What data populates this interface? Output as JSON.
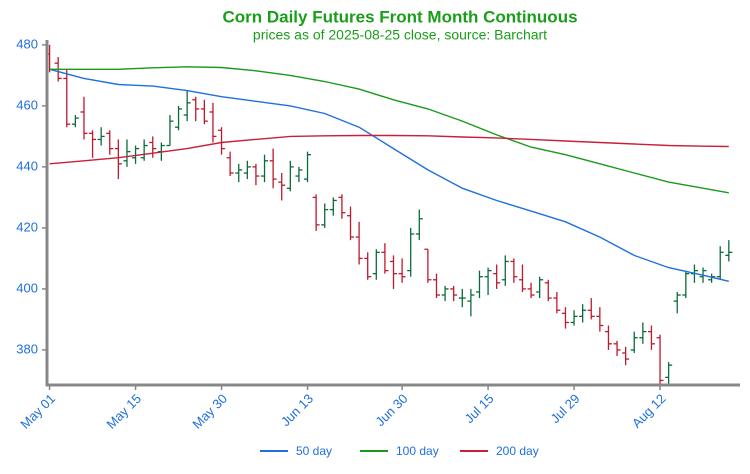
{
  "chart_data": {
    "type": "ohlc",
    "title": "Corn Daily Futures Front Month Continuous",
    "subtitle": "prices as of 2025-08-25 close, source: Barchart",
    "categories": [
      "May 01",
      null,
      null,
      null,
      null,
      null,
      null,
      null,
      null,
      null,
      "May 15",
      null,
      null,
      null,
      null,
      null,
      null,
      null,
      null,
      null,
      "May 30",
      null,
      null,
      null,
      null,
      null,
      null,
      null,
      null,
      null,
      "Jun 13",
      null,
      null,
      null,
      null,
      null,
      null,
      null,
      null,
      null,
      null,
      "Jun 30",
      null,
      null,
      null,
      null,
      null,
      null,
      null,
      null,
      null,
      "Jul 15",
      null,
      null,
      null,
      null,
      null,
      null,
      null,
      null,
      null,
      "Jul 29",
      null,
      null,
      null,
      null,
      null,
      null,
      null,
      null,
      null,
      "Aug 12",
      null,
      null,
      null,
      null,
      null,
      null,
      null,
      null
    ],
    "open": [
      477,
      474,
      469,
      454,
      458,
      451,
      449,
      451,
      446,
      442,
      443,
      443,
      448,
      445,
      447,
      453,
      457,
      462,
      459,
      458,
      452,
      443,
      438,
      438,
      440,
      437,
      442,
      435,
      433,
      437,
      436,
      430,
      421,
      426,
      430,
      424,
      417,
      410,
      405,
      412,
      409,
      405,
      406,
      418,
      413,
      403,
      398,
      400,
      397,
      396,
      399,
      404,
      405,
      403,
      409,
      403,
      400,
      399,
      402,
      397,
      392,
      389,
      391,
      393,
      391,
      386,
      382,
      379,
      380,
      384,
      386,
      384,
      371,
      396,
      398,
      405,
      404,
      403,
      404,
      411
    ],
    "high": [
      480,
      476,
      472,
      457,
      463,
      452,
      453,
      452,
      449,
      449,
      447,
      449,
      450,
      448,
      457,
      460,
      465,
      463,
      462,
      461,
      453,
      445,
      441,
      442,
      441,
      444,
      446,
      438,
      442,
      440,
      445,
      431,
      428,
      430,
      431,
      427,
      422,
      412,
      413,
      415,
      411,
      410,
      420,
      426,
      413,
      405,
      401,
      401,
      400,
      400,
      406,
      407,
      408,
      411,
      410,
      408,
      402,
      404,
      403,
      399,
      394,
      393,
      395,
      397,
      394,
      388,
      383,
      381,
      386,
      389,
      388,
      385,
      376,
      399,
      406,
      408,
      407,
      405,
      414,
      416
    ],
    "low": [
      471,
      468,
      453,
      453,
      449,
      443,
      447,
      444,
      436,
      440,
      441,
      442,
      443,
      442,
      447,
      452,
      455,
      455,
      454,
      448,
      444,
      437,
      435,
      436,
      434,
      435,
      433,
      429,
      432,
      435,
      435,
      419,
      420,
      424,
      423,
      416,
      408,
      403,
      403,
      405,
      400,
      402,
      404,
      416,
      402,
      397,
      396,
      396,
      394,
      391,
      397,
      398,
      400,
      401,
      402,
      399,
      397,
      397,
      396,
      392,
      387,
      388,
      389,
      390,
      386,
      380,
      378,
      375,
      379,
      382,
      380,
      369,
      369,
      392,
      397,
      402,
      402,
      402,
      403,
      409
    ],
    "close": [
      472,
      469,
      454,
      456,
      451,
      449,
      450,
      446,
      441,
      445,
      446,
      447,
      446,
      447,
      455,
      459,
      461,
      459,
      455,
      450,
      446,
      438,
      439,
      440,
      437,
      442,
      436,
      434,
      440,
      439,
      444,
      421,
      426,
      429,
      425,
      417,
      410,
      404,
      412,
      406,
      405,
      404,
      418,
      423,
      403,
      398,
      400,
      398,
      397,
      398,
      404,
      406,
      402,
      409,
      404,
      400,
      398,
      403,
      397,
      393,
      389,
      391,
      393,
      391,
      388,
      382,
      380,
      377,
      384,
      386,
      382,
      370,
      375,
      398,
      405,
      406,
      406,
      404,
      412,
      412
    ],
    "up_color": "#0b6b3a",
    "down_color": "#c0182e",
    "series": [
      {
        "name": "50 day",
        "color": "#1f6fe0",
        "x": [
          0,
          4,
          8,
          12,
          16,
          20,
          24,
          28,
          32,
          36,
          40,
          44,
          48,
          52,
          56,
          60,
          64,
          68,
          72,
          76,
          79
        ],
        "values": [
          472,
          469,
          467,
          466.5,
          465,
          463,
          461.5,
          460,
          457.5,
          453,
          446,
          439,
          433,
          429,
          425.5,
          422,
          417,
          411,
          407,
          404.5,
          402.5
        ]
      },
      {
        "name": "100 day",
        "color": "#1a9a1a",
        "x": [
          0,
          4,
          8,
          12,
          16,
          20,
          24,
          28,
          32,
          36,
          40,
          44,
          48,
          52,
          56,
          60,
          64,
          68,
          72,
          76,
          79
        ],
        "values": [
          472,
          472,
          472,
          472.5,
          472.8,
          472.6,
          471.5,
          470,
          468,
          465.5,
          462,
          459,
          455,
          450.5,
          446.5,
          444,
          441,
          438,
          435,
          433,
          431.5
        ]
      },
      {
        "name": "200 day",
        "color": "#c8203a",
        "x": [
          0,
          4,
          8,
          12,
          16,
          20,
          24,
          28,
          32,
          36,
          40,
          44,
          48,
          52,
          56,
          60,
          64,
          68,
          72,
          76,
          79
        ],
        "values": [
          441,
          442,
          443,
          444.5,
          446,
          448,
          449,
          450,
          450.2,
          450.3,
          450.3,
          450.2,
          449.8,
          449.5,
          449,
          448.5,
          448,
          447.5,
          447,
          446.8,
          446.7
        ]
      }
    ],
    "xlim": [
      -0.3,
      80.3
    ],
    "ylim": [
      368.5,
      481.6
    ],
    "yticks": [
      380,
      400,
      420,
      440,
      460,
      480
    ]
  }
}
